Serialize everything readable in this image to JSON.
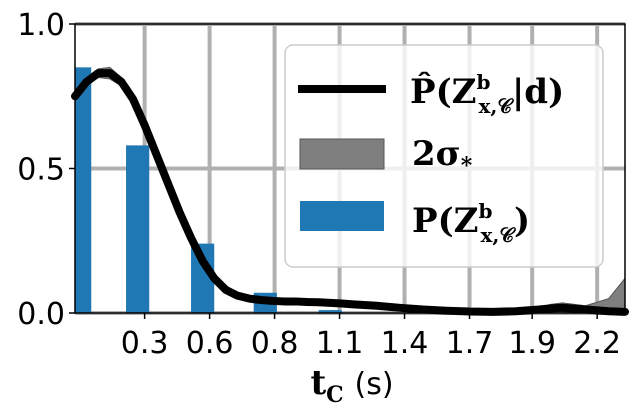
{
  "chart_data": {
    "type": "bar",
    "xlabel_main": "t",
    "xlabel_sub": "C",
    "xlabel_unit": "(s)",
    "xlim": [
      0,
      2.37
    ],
    "ylim": [
      0,
      1.0
    ],
    "grid": true,
    "legend_position": "top-right",
    "x_ticks": [
      {
        "label": "0.3",
        "value": 0.3
      },
      {
        "label": "0.6",
        "value": 0.58
      },
      {
        "label": "0.8",
        "value": 0.86
      },
      {
        "label": "1.1",
        "value": 1.14
      },
      {
        "label": "1.4",
        "value": 1.42
      },
      {
        "label": "1.7",
        "value": 1.7
      },
      {
        "label": "1.9",
        "value": 1.97
      },
      {
        "label": "2.2",
        "value": 2.25
      }
    ],
    "y_ticks": [
      {
        "label": "0.0",
        "value": 0.0
      },
      {
        "label": "0.5",
        "value": 0.5
      },
      {
        "label": "1.0",
        "value": 1.0
      }
    ],
    "bar_width": 0.1,
    "bars": {
      "x": [
        0.02,
        0.27,
        0.55,
        0.82,
        1.1
      ],
      "values": [
        0.85,
        0.58,
        0.24,
        0.07,
        0.01
      ],
      "color": "#1f77b4"
    },
    "curve": {
      "x": [
        0,
        0.05,
        0.1,
        0.15,
        0.2,
        0.25,
        0.3,
        0.35,
        0.4,
        0.45,
        0.5,
        0.55,
        0.6,
        0.65,
        0.7,
        0.75,
        0.8,
        0.85,
        0.9,
        0.95,
        1.0,
        1.05,
        1.1,
        1.15,
        1.2,
        1.3,
        1.4,
        1.5,
        1.6,
        1.7,
        1.8,
        1.9,
        2.0,
        2.05,
        2.1,
        2.2,
        2.3,
        2.37
      ],
      "values": [
        0.75,
        0.8,
        0.83,
        0.83,
        0.8,
        0.74,
        0.65,
        0.55,
        0.45,
        0.35,
        0.26,
        0.18,
        0.12,
        0.08,
        0.06,
        0.05,
        0.045,
        0.042,
        0.04,
        0.04,
        0.038,
        0.037,
        0.035,
        0.033,
        0.03,
        0.025,
        0.018,
        0.012,
        0.008,
        0.005,
        0.004,
        0.006,
        0.012,
        0.016,
        0.018,
        0.012,
        0.006,
        0.004
      ],
      "color": "#000000"
    },
    "band": {
      "x": [
        0,
        0.05,
        0.1,
        0.15,
        0.2,
        0.25,
        0.3,
        0.35,
        0.4,
        0.45,
        0.5,
        0.55,
        0.6,
        0.65,
        0.7,
        0.75,
        0.8,
        0.85,
        0.9,
        0.95,
        1.0,
        1.05,
        1.1,
        1.15,
        1.2,
        1.3,
        1.4,
        1.5,
        1.6,
        1.7,
        1.8,
        1.9,
        2.0,
        2.05,
        2.1,
        2.2,
        2.3,
        2.37
      ],
      "upper": [
        0.77,
        0.815,
        0.845,
        0.85,
        0.815,
        0.755,
        0.665,
        0.565,
        0.465,
        0.365,
        0.27,
        0.19,
        0.13,
        0.088,
        0.066,
        0.056,
        0.05,
        0.047,
        0.045,
        0.045,
        0.043,
        0.042,
        0.04,
        0.038,
        0.035,
        0.03,
        0.023,
        0.017,
        0.012,
        0.008,
        0.007,
        0.01,
        0.02,
        0.03,
        0.035,
        0.025,
        0.05,
        0.12
      ],
      "lower": [
        0.73,
        0.785,
        0.815,
        0.81,
        0.785,
        0.725,
        0.635,
        0.535,
        0.435,
        0.335,
        0.25,
        0.17,
        0.11,
        0.072,
        0.054,
        0.044,
        0.04,
        0.037,
        0.035,
        0.035,
        0.033,
        0.032,
        0.03,
        0.028,
        0.025,
        0.02,
        0.013,
        0.007,
        0.004,
        0.002,
        0.001,
        0.002,
        0.004,
        0.004,
        0.004,
        0.002,
        0.0,
        0.0
      ],
      "color": "#7f7f7f"
    },
    "legend": [
      {
        "kind": "line",
        "main": "P̂(Z",
        "sup": "b",
        "sub": "x,𝒞",
        "tail": "|d)"
      },
      {
        "kind": "band",
        "main": "2σ",
        "sub": "*"
      },
      {
        "kind": "bar",
        "main": "P(Z",
        "sup": "b",
        "sub": "x,𝒞",
        "tail": ")"
      }
    ]
  }
}
